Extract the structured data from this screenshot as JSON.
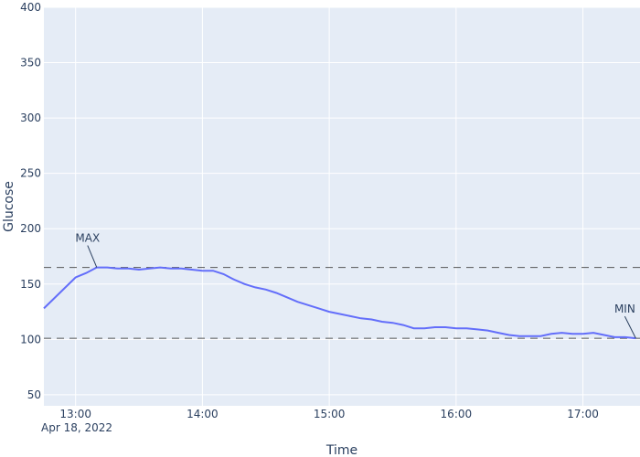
{
  "chart_data": {
    "type": "line",
    "xlabel": "Time",
    "ylabel": "Glucose",
    "ylim": [
      40,
      400
    ],
    "xlim": [
      "2022-04-18 12:45",
      "2022-04-18 17:27"
    ],
    "x_ticks": [
      "13:00",
      "14:00",
      "15:00",
      "16:00",
      "17:00"
    ],
    "x_tick_date": "Apr 18, 2022",
    "y_ticks": [
      50,
      100,
      150,
      200,
      250,
      300,
      350,
      400
    ],
    "grid": true,
    "line_color": "#636efa",
    "plot_bg": "#e5ecf6",
    "series": [
      {
        "x": [
          "12:45",
          "13:00",
          "13:05",
          "13:10",
          "13:15",
          "13:20",
          "13:25",
          "13:30",
          "13:35",
          "13:40",
          "13:45",
          "13:50",
          "13:55",
          "14:00",
          "14:05",
          "14:10",
          "14:15",
          "14:20",
          "14:25",
          "14:30",
          "14:35",
          "14:40",
          "14:45",
          "14:50",
          "14:55",
          "15:00",
          "15:05",
          "15:10",
          "15:15",
          "15:20",
          "15:25",
          "15:30",
          "15:35",
          "15:40",
          "15:45",
          "15:50",
          "15:55",
          "16:00",
          "16:05",
          "16:10",
          "16:15",
          "16:20",
          "16:25",
          "16:30",
          "16:35",
          "16:40",
          "16:45",
          "16:50",
          "16:55",
          "17:00",
          "17:05",
          "17:10",
          "17:15",
          "17:20",
          "17:25"
        ],
        "y": [
          128,
          156,
          160,
          165,
          165,
          164,
          164,
          163,
          164,
          165,
          164,
          164,
          163,
          162,
          162,
          159,
          154,
          150,
          147,
          145,
          142,
          138,
          134,
          131,
          128,
          125,
          123,
          121,
          119,
          118,
          116,
          115,
          113,
          110,
          110,
          111,
          111,
          110,
          110,
          109,
          108,
          106,
          104,
          103,
          103,
          103,
          105,
          106,
          105,
          105,
          106,
          104,
          102,
          102,
          101
        ]
      }
    ],
    "reference_lines": [
      {
        "y": 165,
        "style": "dashed"
      },
      {
        "y": 101,
        "style": "dashed"
      }
    ],
    "annotations": [
      {
        "text": "MAX",
        "x": "13:10",
        "y": 165
      },
      {
        "text": "MIN",
        "x": "17:25",
        "y": 101
      }
    ]
  }
}
